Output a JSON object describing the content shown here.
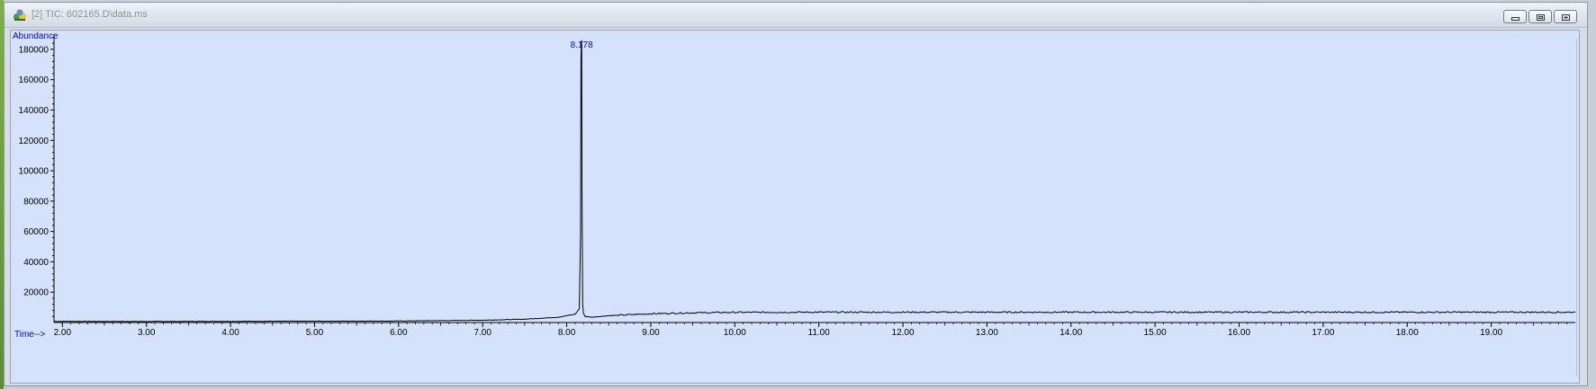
{
  "window": {
    "title": "[2] TIC: 602165.D\\data.ms",
    "icons": {
      "app": "chromatogram-app-icon",
      "minimize": "minimize-icon",
      "restore": "restore-icon",
      "close": "close-icon"
    }
  },
  "colors": {
    "plot_background": "#d4e3fb",
    "trace": "#000000",
    "axis_label": "#0000c8",
    "peak_label": "#0000c8"
  },
  "chart_data": {
    "type": "line",
    "ylabel": "Abundance",
    "xlabel": "Time-->",
    "xlim": [
      1.9,
      20.0
    ],
    "ylim": [
      0,
      190000
    ],
    "x_ticks": [
      2,
      3,
      4,
      5,
      6,
      7,
      8,
      9,
      10,
      11,
      12,
      13,
      14,
      15,
      16,
      17,
      18,
      19
    ],
    "x_tick_labels": [
      "2.00",
      "3.00",
      "4.00",
      "5.00",
      "6.00",
      "7.00",
      "8.00",
      "9.00",
      "10.00",
      "11.00",
      "12.00",
      "13.00",
      "14.00",
      "15.00",
      "16.00",
      "17.00",
      "18.00",
      "19.00"
    ],
    "y_ticks": [
      20000,
      40000,
      60000,
      80000,
      100000,
      120000,
      140000,
      160000,
      180000
    ],
    "y_tick_labels": [
      "20000",
      "40000",
      "60000",
      "80000",
      "100000",
      "120000",
      "140000",
      "160000",
      "180000"
    ],
    "grid": false,
    "peak_annotation": {
      "x": 8.178,
      "label": "8.178"
    },
    "series": [
      {
        "x": [
          1.9,
          3.0,
          4.0,
          5.0,
          6.0,
          7.0,
          7.5,
          7.9,
          8.1,
          8.15,
          8.165,
          8.17,
          8.175,
          8.178,
          8.182,
          8.19,
          8.2,
          8.22,
          8.3,
          8.5,
          9.0,
          9.5,
          10.0,
          11.0,
          12.0,
          13.0,
          14.0,
          15.0,
          16.0,
          17.0,
          18.0,
          19.0,
          20.0
        ],
        "y": [
          800,
          700,
          800,
          900,
          1000,
          1500,
          2200,
          3500,
          5500,
          9000,
          60000,
          175000,
          184000,
          186000,
          85000,
          12000,
          6000,
          4000,
          3500,
          4500,
          5800,
          6400,
          6700,
          6800,
          6800,
          6800,
          6800,
          6800,
          6800,
          6800,
          6800,
          6800,
          6800
        ]
      }
    ]
  }
}
